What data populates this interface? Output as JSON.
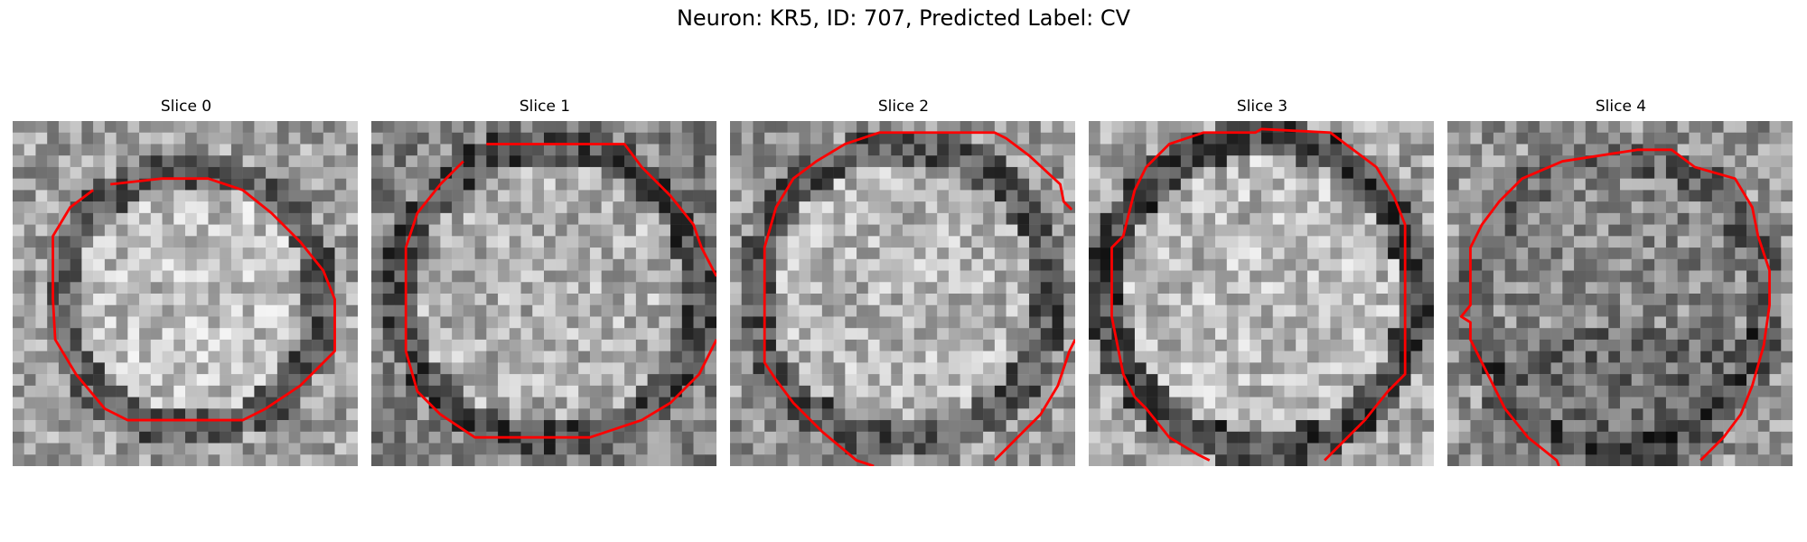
{
  "figure": {
    "title": "Neuron: KR5, ID: 707, Predicted Label: CV",
    "contour_color": "#ff0000",
    "colormap": "grayscale",
    "grid_size": 30
  },
  "panels": [
    {
      "title": "Slice 0"
    },
    {
      "title": "Slice 1"
    },
    {
      "title": "Slice 2"
    },
    {
      "title": "Slice 3"
    },
    {
      "title": "Slice 4"
    }
  ]
}
